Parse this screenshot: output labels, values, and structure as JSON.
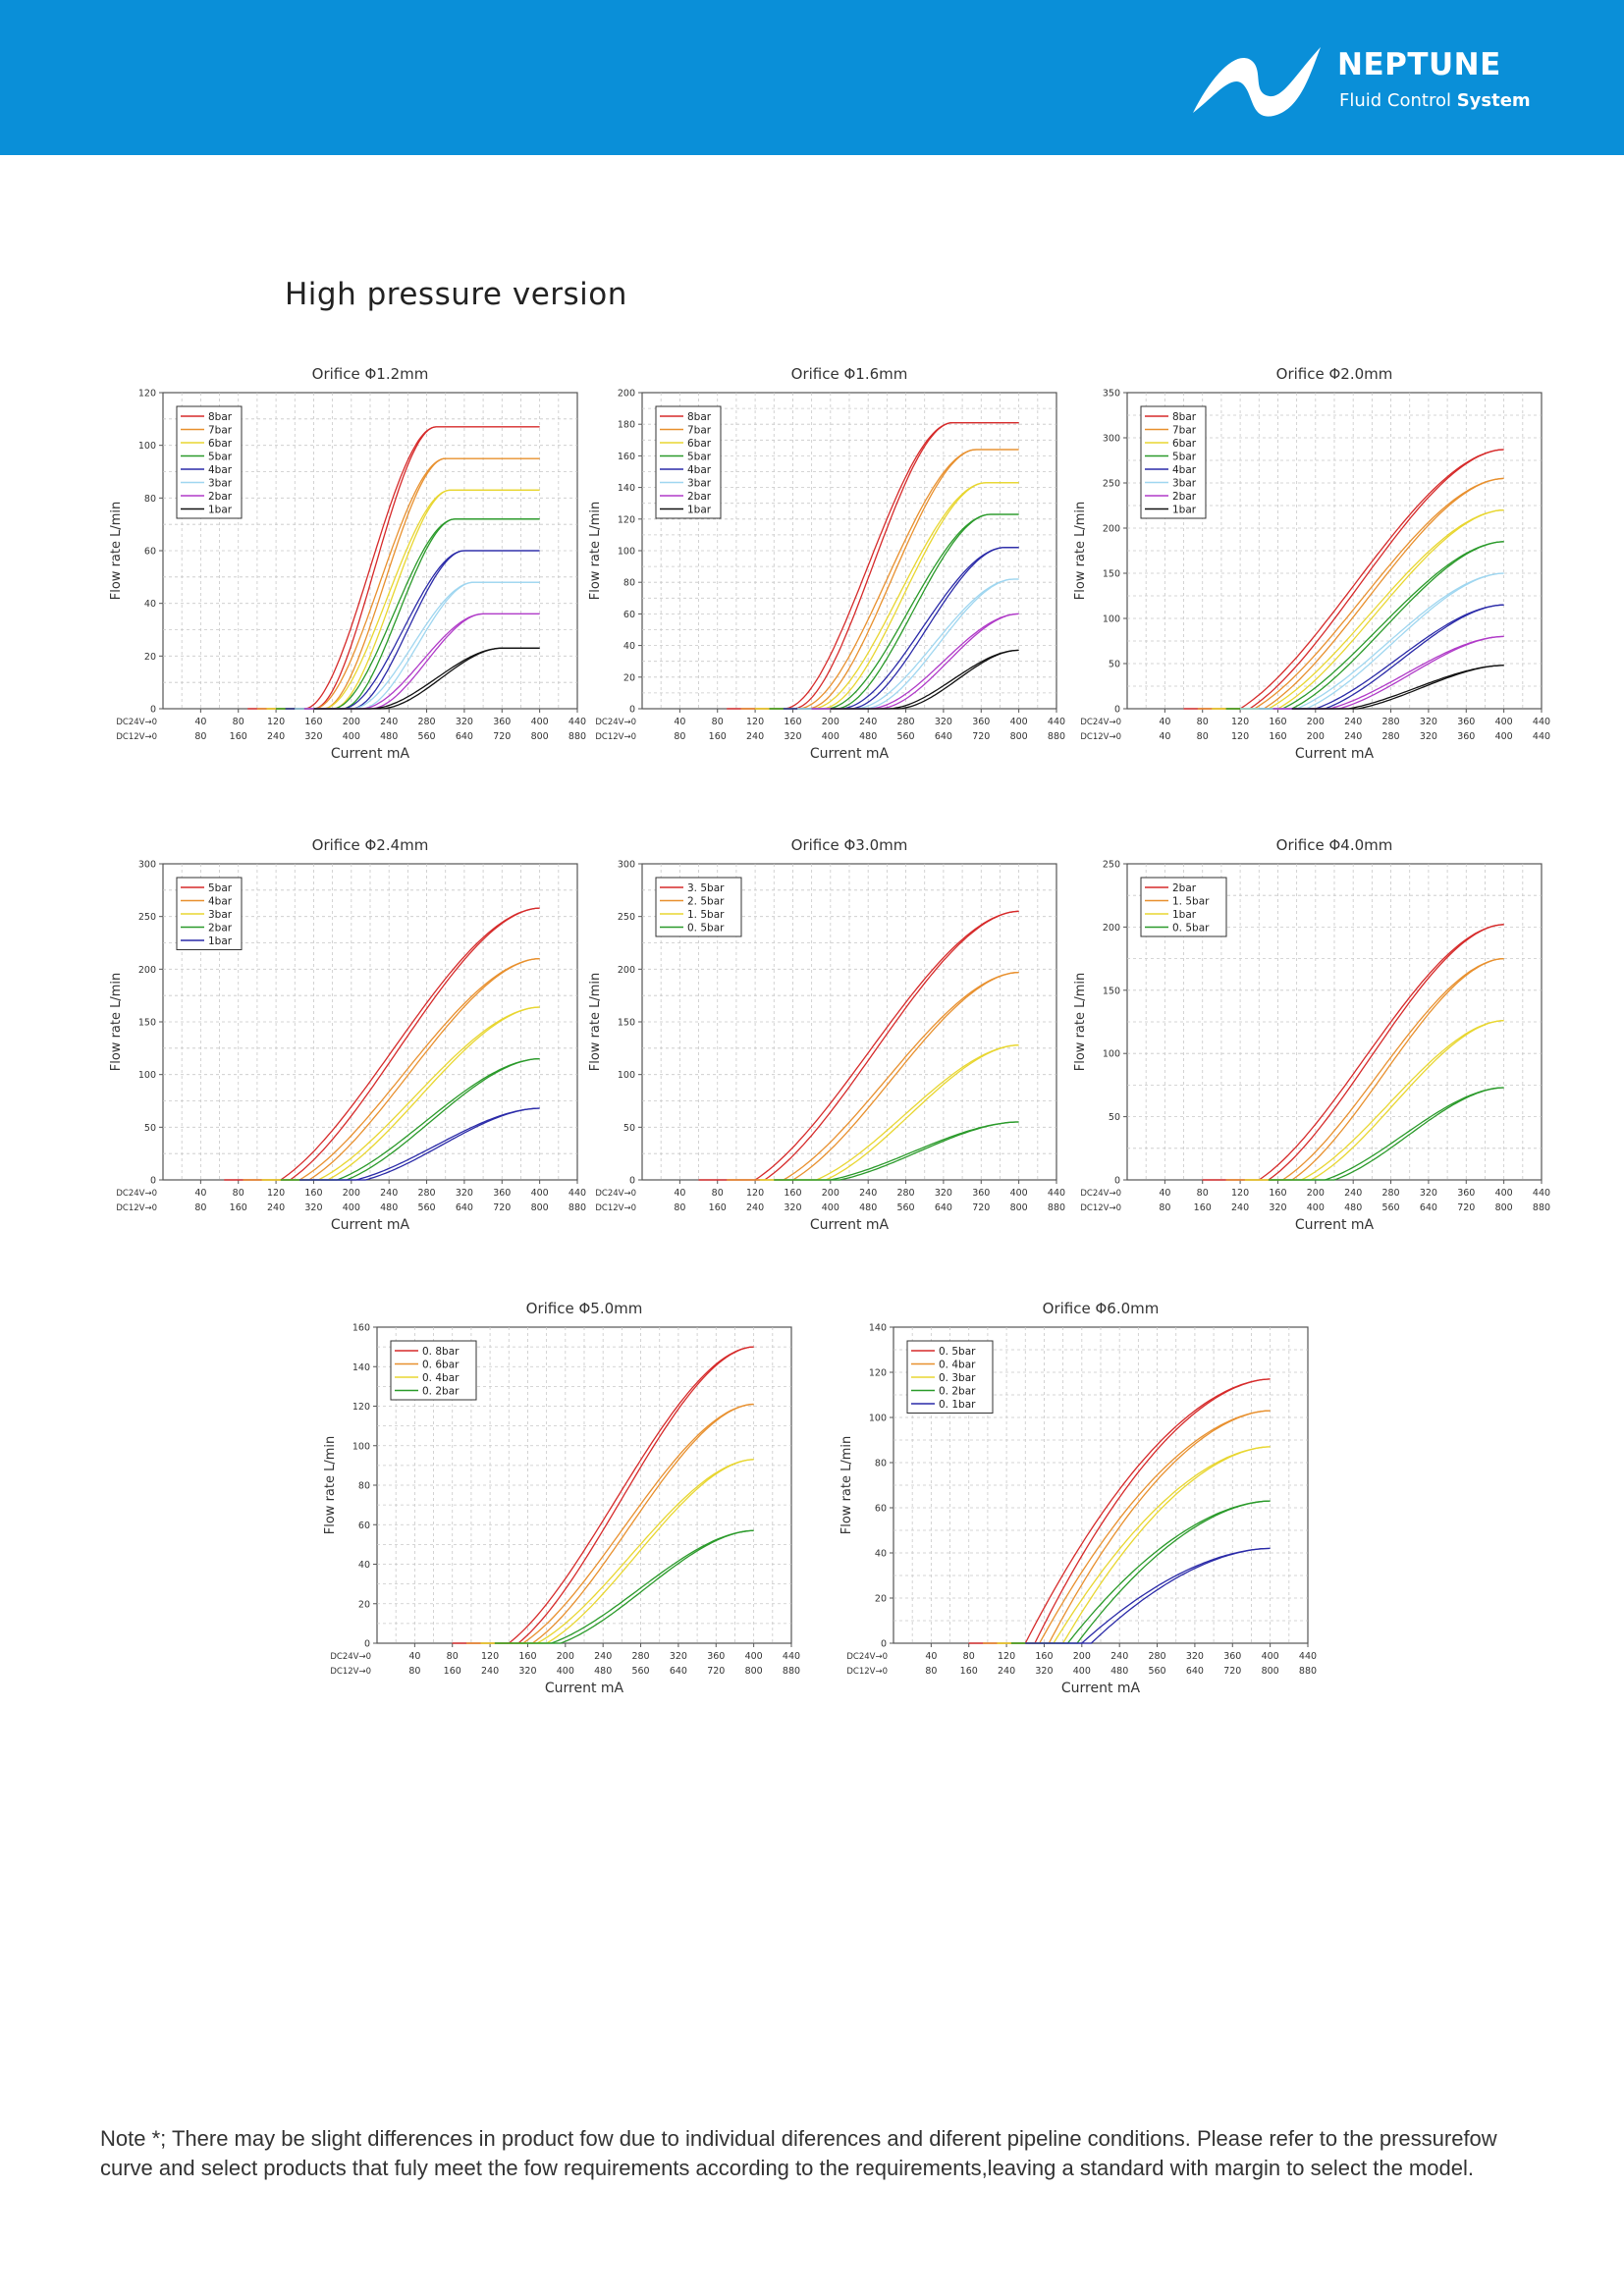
{
  "header": {
    "brand": "NEPTUNE",
    "tagline_prefix": "Fluid Control ",
    "tagline_bold": "System",
    "bar_color": "#0a8fd8"
  },
  "section_title": "High pressure version",
  "note": "Note *; There may be slight differences in product fow due to individual diferences and diferent pipeline conditions. Please refer to the pressurefow curve and select products that fuly meet the fow requirements according to the requirements,leaving a standard with margin to select the model.",
  "series_colors": [
    "#d62a2a",
    "#e8902e",
    "#e8d630",
    "#2a9a2a",
    "#2a2aa8",
    "#9fd6f0",
    "#b03ac8",
    "#111111"
  ],
  "chart_data": [
    {
      "type": "line",
      "title": "Orifice Φ1.2mm",
      "xlabel": "Current mA",
      "ylabel": "Flow rate L/min",
      "ylim": [
        0,
        120
      ],
      "y_ticks": [
        "0",
        "20",
        "40",
        "60",
        "80",
        "100",
        "120"
      ],
      "xlim": [
        0,
        440
      ],
      "x_row1_label": "DC24V→0",
      "x_row1_ticks": [
        "40",
        "80",
        "120",
        "160",
        "200",
        "240",
        "280",
        "320",
        "360",
        "400",
        "440"
      ],
      "x_row2_label": "DC12V→0",
      "x_row2_ticks": [
        "80",
        "160",
        "240",
        "320",
        "400",
        "480",
        "560",
        "640",
        "720",
        "800",
        "880"
      ],
      "legend_position": "top-left",
      "grid": true,
      "series": [
        {
          "name": "8bar",
          "color": "#d62a2a",
          "start": 150,
          "plateau": 290,
          "values": [
            0,
            107
          ],
          "shape": "s"
        },
        {
          "name": "7bar",
          "color": "#e8902e",
          "start": 160,
          "plateau": 300,
          "values": [
            0,
            95
          ],
          "shape": "s"
        },
        {
          "name": "6bar",
          "color": "#e8d630",
          "start": 170,
          "plateau": 305,
          "values": [
            0,
            83
          ],
          "shape": "s"
        },
        {
          "name": "5bar",
          "color": "#2a9a2a",
          "start": 180,
          "plateau": 310,
          "values": [
            0,
            72
          ],
          "shape": "s"
        },
        {
          "name": "4bar",
          "color": "#2a2aa8",
          "start": 190,
          "plateau": 320,
          "values": [
            0,
            60
          ],
          "shape": "s"
        },
        {
          "name": "3bar",
          "color": "#9fd6f0",
          "start": 200,
          "plateau": 330,
          "values": [
            0,
            48
          ],
          "shape": "s"
        },
        {
          "name": "2bar",
          "color": "#b03ac8",
          "start": 210,
          "plateau": 340,
          "values": [
            0,
            36
          ],
          "shape": "s"
        },
        {
          "name": "1bar",
          "color": "#111111",
          "start": 220,
          "plateau": 360,
          "values": [
            0,
            23
          ],
          "shape": "s"
        }
      ]
    },
    {
      "type": "line",
      "title": "Orifice Φ1.6mm",
      "xlabel": "Current mA",
      "ylabel": "Flow rate L/min",
      "ylim": [
        0,
        200
      ],
      "y_ticks": [
        "0",
        "20",
        "40",
        "60",
        "80",
        "100",
        "120",
        "140",
        "160",
        "180",
        "200"
      ],
      "xlim": [
        0,
        440
      ],
      "x_row1_label": "DC24V→0",
      "x_row1_ticks": [
        "40",
        "80",
        "120",
        "160",
        "200",
        "240",
        "280",
        "320",
        "360",
        "400",
        "440"
      ],
      "x_row2_label": "DC12V→0",
      "x_row2_ticks": [
        "80",
        "160",
        "240",
        "320",
        "400",
        "480",
        "560",
        "640",
        "720",
        "800",
        "880"
      ],
      "legend_position": "top-left",
      "grid": true,
      "series": [
        {
          "name": "8bar",
          "color": "#d62a2a",
          "start": 150,
          "plateau": 330,
          "values": [
            0,
            181
          ],
          "shape": "s"
        },
        {
          "name": "7bar",
          "color": "#e8902e",
          "start": 165,
          "plateau": 355,
          "values": [
            0,
            164
          ],
          "shape": "s"
        },
        {
          "name": "6bar",
          "color": "#e8d630",
          "start": 180,
          "plateau": 365,
          "values": [
            0,
            143
          ],
          "shape": "s"
        },
        {
          "name": "5bar",
          "color": "#2a9a2a",
          "start": 195,
          "plateau": 370,
          "values": [
            0,
            123
          ],
          "shape": "s"
        },
        {
          "name": "4bar",
          "color": "#2a2aa8",
          "start": 210,
          "plateau": 385,
          "values": [
            0,
            102
          ],
          "shape": "s"
        },
        {
          "name": "3bar",
          "color": "#9fd6f0",
          "start": 225,
          "plateau": 395,
          "values": [
            0,
            82
          ],
          "shape": "s"
        },
        {
          "name": "2bar",
          "color": "#b03ac8",
          "start": 240,
          "plateau": 400,
          "values": [
            0,
            60
          ],
          "shape": "s"
        },
        {
          "name": "1bar",
          "color": "#111111",
          "start": 260,
          "plateau": 400,
          "values": [
            0,
            37
          ],
          "shape": "s"
        }
      ]
    },
    {
      "type": "line",
      "title": "Orifice Φ2.0mm",
      "xlabel": "Current mA",
      "ylabel": "Flow rate L/min",
      "ylim": [
        0,
        350
      ],
      "y_ticks": [
        "0",
        "50",
        "100",
        "150",
        "200",
        "250",
        "300",
        "350"
      ],
      "xlim": [
        0,
        440
      ],
      "x_row1_label": "DC24V→0",
      "x_row1_ticks": [
        "40",
        "80",
        "120",
        "160",
        "200",
        "240",
        "280",
        "320",
        "360",
        "400",
        "440"
      ],
      "x_row2_label": "DC12V→0",
      "x_row2_ticks": [
        "40",
        "80",
        "120",
        "160",
        "200",
        "240",
        "280",
        "320",
        "360",
        "400",
        "440"
      ],
      "legend_position": "top-left",
      "grid": true,
      "series": [
        {
          "name": "8bar",
          "color": "#d62a2a",
          "start": 120,
          "plateau": 400,
          "values": [
            0,
            287
          ],
          "shape": "r"
        },
        {
          "name": "7bar",
          "color": "#e8902e",
          "start": 135,
          "plateau": 400,
          "values": [
            0,
            255
          ],
          "shape": "r"
        },
        {
          "name": "6bar",
          "color": "#e8d630",
          "start": 150,
          "plateau": 400,
          "values": [
            0,
            220
          ],
          "shape": "r"
        },
        {
          "name": "5bar",
          "color": "#2a9a2a",
          "start": 165,
          "plateau": 400,
          "values": [
            0,
            185
          ],
          "shape": "r"
        },
        {
          "name": "4bar",
          "color": "#2a2aa8",
          "start": 200,
          "plateau": 400,
          "values": [
            0,
            115
          ],
          "shape": "r"
        },
        {
          "name": "3bar",
          "color": "#9fd6f0",
          "start": 180,
          "plateau": 400,
          "values": [
            0,
            150
          ],
          "shape": "r"
        },
        {
          "name": "2bar",
          "color": "#b03ac8",
          "start": 215,
          "plateau": 400,
          "values": [
            0,
            80
          ],
          "shape": "r"
        },
        {
          "name": "1bar",
          "color": "#111111",
          "start": 235,
          "plateau": 400,
          "values": [
            0,
            48
          ],
          "shape": "r"
        }
      ]
    },
    {
      "type": "line",
      "title": "Orifice Φ2.4mm",
      "xlabel": "Current mA",
      "ylabel": "Flow rate L/min",
      "ylim": [
        0,
        300
      ],
      "y_ticks": [
        "0",
        "50",
        "100",
        "150",
        "200",
        "250",
        "300"
      ],
      "xlim": [
        0,
        440
      ],
      "x_row1_label": "DC24V→0",
      "x_row1_ticks": [
        "40",
        "80",
        "120",
        "160",
        "200",
        "240",
        "280",
        "320",
        "360",
        "400",
        "440"
      ],
      "x_row2_label": "DC12V→0",
      "x_row2_ticks": [
        "80",
        "160",
        "240",
        "320",
        "400",
        "480",
        "560",
        "640",
        "720",
        "800",
        "880"
      ],
      "legend_position": "top-left",
      "grid": true,
      "series": [
        {
          "name": "5bar",
          "color": "#d62a2a",
          "start": 125,
          "plateau": 400,
          "values": [
            0,
            258
          ],
          "shape": "r"
        },
        {
          "name": "4bar",
          "color": "#e8902e",
          "start": 145,
          "plateau": 400,
          "values": [
            0,
            210
          ],
          "shape": "r"
        },
        {
          "name": "3bar",
          "color": "#e8d630",
          "start": 165,
          "plateau": 400,
          "values": [
            0,
            164
          ],
          "shape": "r"
        },
        {
          "name": "2bar",
          "color": "#2a9a2a",
          "start": 185,
          "plateau": 400,
          "values": [
            0,
            115
          ],
          "shape": "r"
        },
        {
          "name": "1bar",
          "color": "#2a2aa8",
          "start": 205,
          "plateau": 400,
          "values": [
            0,
            68
          ],
          "shape": "r"
        }
      ]
    },
    {
      "type": "line",
      "title": "Orifice Φ3.0mm",
      "xlabel": "Current mA",
      "ylabel": "Flow rate L/min",
      "ylim": [
        0,
        300
      ],
      "y_ticks": [
        "0",
        "50",
        "100",
        "150",
        "200",
        "250",
        "300"
      ],
      "xlim": [
        0,
        440
      ],
      "x_row1_label": "DC24V→0",
      "x_row1_ticks": [
        "40",
        "80",
        "120",
        "160",
        "200",
        "240",
        "280",
        "320",
        "360",
        "400",
        "440"
      ],
      "x_row2_label": "DC12V→0",
      "x_row2_ticks": [
        "80",
        "160",
        "240",
        "320",
        "400",
        "480",
        "560",
        "640",
        "720",
        "800",
        "880"
      ],
      "legend_position": "top-left",
      "grid": true,
      "series": [
        {
          "name": "3. 5bar",
          "color": "#d62a2a",
          "start": 120,
          "plateau": 400,
          "values": [
            0,
            255
          ],
          "shape": "r"
        },
        {
          "name": "2. 5bar",
          "color": "#e8902e",
          "start": 150,
          "plateau": 400,
          "values": [
            0,
            197
          ],
          "shape": "r"
        },
        {
          "name": "1. 5bar",
          "color": "#e8d630",
          "start": 185,
          "plateau": 400,
          "values": [
            0,
            128
          ],
          "shape": "r"
        },
        {
          "name": "0. 5bar",
          "color": "#2a9a2a",
          "start": 200,
          "plateau": 400,
          "values": [
            0,
            55
          ],
          "shape": "r"
        }
      ]
    },
    {
      "type": "line",
      "title": "Orifice Φ4.0mm",
      "xlabel": "Current mA",
      "ylabel": "Flow rate L/min",
      "ylim": [
        0,
        250
      ],
      "y_ticks": [
        "0",
        "50",
        "100",
        "150",
        "200",
        "250"
      ],
      "xlim": [
        0,
        440
      ],
      "x_row1_label": "DC24V→0",
      "x_row1_ticks": [
        "40",
        "80",
        "120",
        "160",
        "200",
        "240",
        "280",
        "320",
        "360",
        "400",
        "440"
      ],
      "x_row2_label": "DC12V→0",
      "x_row2_ticks": [
        "80",
        "160",
        "240",
        "320",
        "400",
        "480",
        "560",
        "640",
        "720",
        "800",
        "880"
      ],
      "legend_position": "top-left",
      "grid": true,
      "series": [
        {
          "name": "2bar",
          "color": "#d62a2a",
          "start": 140,
          "plateau": 400,
          "values": [
            0,
            202
          ],
          "shape": "r"
        },
        {
          "name": "1. 5bar",
          "color": "#e8902e",
          "start": 165,
          "plateau": 400,
          "values": [
            0,
            175
          ],
          "shape": "r"
        },
        {
          "name": "1bar",
          "color": "#e8d630",
          "start": 185,
          "plateau": 400,
          "values": [
            0,
            126
          ],
          "shape": "r"
        },
        {
          "name": "0. 5bar",
          "color": "#2a9a2a",
          "start": 210,
          "plateau": 400,
          "values": [
            0,
            73
          ],
          "shape": "r"
        }
      ]
    },
    {
      "type": "line",
      "title": "Orifice Φ5.0mm",
      "xlabel": "Current mA",
      "ylabel": "Flow rate L/min",
      "ylim": [
        0,
        160
      ],
      "y_ticks": [
        "0",
        "20",
        "40",
        "60",
        "80",
        "100",
        "120",
        "140",
        "160"
      ],
      "xlim": [
        0,
        440
      ],
      "x_row1_label": "DC24V→0",
      "x_row1_ticks": [
        "40",
        "80",
        "120",
        "160",
        "200",
        "240",
        "280",
        "320",
        "360",
        "400",
        "440"
      ],
      "x_row2_label": "DC12V→0",
      "x_row2_ticks": [
        "80",
        "160",
        "240",
        "320",
        "400",
        "480",
        "560",
        "640",
        "720",
        "800",
        "880"
      ],
      "legend_position": "top-left",
      "grid": true,
      "series": [
        {
          "name": "0. 8bar",
          "color": "#d62a2a",
          "start": 140,
          "plateau": 400,
          "values": [
            0,
            150
          ],
          "shape": "r"
        },
        {
          "name": "0. 6bar",
          "color": "#e8902e",
          "start": 155,
          "plateau": 400,
          "values": [
            0,
            121
          ],
          "shape": "r"
        },
        {
          "name": "0. 4bar",
          "color": "#e8d630",
          "start": 170,
          "plateau": 400,
          "values": [
            0,
            93
          ],
          "shape": "r"
        },
        {
          "name": "0. 2bar",
          "color": "#2a9a2a",
          "start": 185,
          "plateau": 400,
          "values": [
            0,
            57
          ],
          "shape": "r"
        }
      ]
    },
    {
      "type": "line",
      "title": "Orifice Φ6.0mm",
      "xlabel": "Current mA",
      "ylabel": "Flow rate L/min",
      "ylim": [
        0,
        140
      ],
      "y_ticks": [
        "0",
        "20",
        "40",
        "60",
        "80",
        "100",
        "120",
        "140"
      ],
      "xlim": [
        0,
        440
      ],
      "x_row1_label": "DC24V→0",
      "x_row1_ticks": [
        "40",
        "80",
        "120",
        "160",
        "200",
        "240",
        "280",
        "320",
        "360",
        "400",
        "440"
      ],
      "x_row2_label": "DC12V→0",
      "x_row2_ticks": [
        "80",
        "160",
        "240",
        "320",
        "400",
        "480",
        "560",
        "640",
        "720",
        "800",
        "880"
      ],
      "legend_position": "top-left",
      "grid": true,
      "series": [
        {
          "name": "0. 5bar",
          "color": "#d62a2a",
          "start": 140,
          "plateau": 400,
          "values": [
            0,
            117
          ],
          "shape": "c"
        },
        {
          "name": "0. 4bar",
          "color": "#e8902e",
          "start": 155,
          "plateau": 400,
          "values": [
            0,
            103
          ],
          "shape": "c"
        },
        {
          "name": "0. 3bar",
          "color": "#e8d630",
          "start": 170,
          "plateau": 400,
          "values": [
            0,
            87
          ],
          "shape": "c"
        },
        {
          "name": "0. 2bar",
          "color": "#2a9a2a",
          "start": 185,
          "plateau": 400,
          "values": [
            0,
            63
          ],
          "shape": "c"
        },
        {
          "name": "0. 1bar",
          "color": "#2a2aa8",
          "start": 200,
          "plateau": 400,
          "values": [
            0,
            42
          ],
          "shape": "c"
        }
      ]
    }
  ]
}
